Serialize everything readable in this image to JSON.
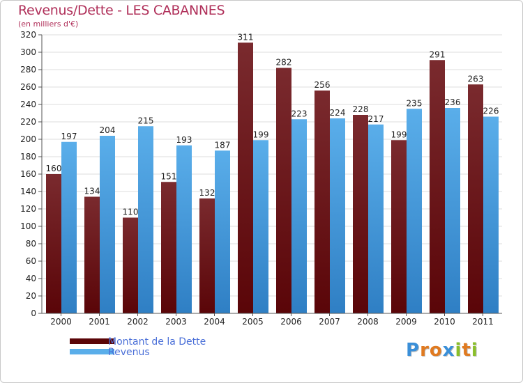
{
  "title": "Revenus/Dette - LES CABANNES",
  "subtitle": "(en milliers d'€)",
  "logo": "Proxiti",
  "colors": {
    "dette_top": "#7a2a2e",
    "dette_bottom": "#5a0508",
    "revenus_top": "#5aaeea",
    "revenus_bottom": "#2f7fc4",
    "grid": "#dedede",
    "title": "#b0305a",
    "legend_text": "#4a6fd8"
  },
  "chart_data": {
    "type": "bar",
    "categories": [
      "2000",
      "2001",
      "2002",
      "2003",
      "2004",
      "2005",
      "2006",
      "2007",
      "2008",
      "2009",
      "2010",
      "2011"
    ],
    "series": [
      {
        "name": "Montant de la Dette",
        "values": [
          160,
          134,
          110,
          151,
          132,
          311,
          282,
          256,
          228,
          199,
          291,
          263
        ]
      },
      {
        "name": "Revenus",
        "values": [
          197,
          204,
          215,
          193,
          187,
          199,
          223,
          224,
          217,
          235,
          236,
          226
        ]
      }
    ],
    "ylim": [
      0,
      320
    ],
    "yticks": [
      0,
      20,
      40,
      60,
      80,
      100,
      120,
      140,
      160,
      180,
      200,
      220,
      240,
      260,
      280,
      300,
      320
    ],
    "grid": true,
    "legend": "bottom-left"
  }
}
